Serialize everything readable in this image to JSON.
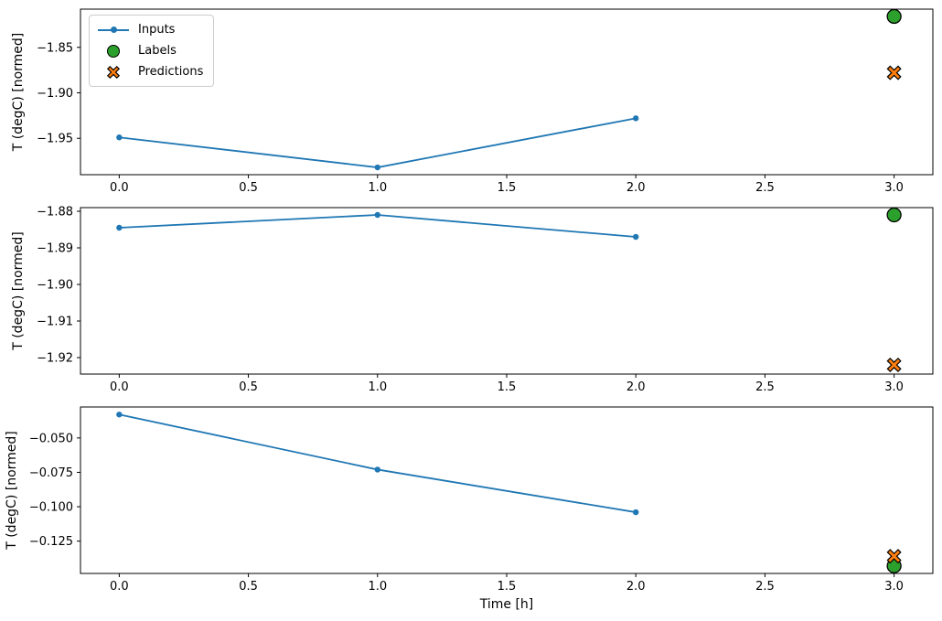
{
  "figure": {
    "background": "#ffffff",
    "legend": {
      "position": "upper-left-of-top-subplot",
      "items": [
        {
          "label": "Inputs",
          "marker": "line-with-dot",
          "color": "#1f77b4"
        },
        {
          "label": "Labels",
          "marker": "filled-circle",
          "color": "#2ca02c",
          "edge_color": "#000000"
        },
        {
          "label": "Predictions",
          "marker": "filled-x",
          "color": "#ff7f0e",
          "edge_color": "#000000"
        }
      ]
    }
  },
  "chart_data": [
    {
      "type": "line",
      "title": "",
      "xlabel": "",
      "ylabel": "T (degC) [normed]",
      "grid": false,
      "xlim": [
        -0.15,
        3.15
      ],
      "ylim": [
        -1.99,
        -1.808
      ],
      "xticks": [
        0.0,
        0.5,
        1.0,
        1.5,
        2.0,
        2.5,
        3.0
      ],
      "xtick_labels": [
        "0.0",
        "0.5",
        "1.0",
        "1.5",
        "2.0",
        "2.5",
        "3.0"
      ],
      "yticks": [
        -1.85,
        -1.9,
        -1.95
      ],
      "ytick_labels": [
        "−1.85",
        "−1.90",
        "−1.95"
      ],
      "legend_visible": true,
      "series": [
        {
          "name": "Inputs",
          "type": "line",
          "marker": "dot",
          "color": "#1f77b4",
          "x": [
            0,
            1,
            2
          ],
          "y": [
            -1.949,
            -1.982,
            -1.928
          ]
        },
        {
          "name": "Labels",
          "type": "scatter",
          "marker": "circle",
          "color": "#2ca02c",
          "edge_color": "#000000",
          "x": [
            3
          ],
          "y": [
            -1.816
          ]
        },
        {
          "name": "Predictions",
          "type": "scatter",
          "marker": "X",
          "color": "#ff7f0e",
          "edge_color": "#000000",
          "x": [
            3
          ],
          "y": [
            -1.878
          ]
        }
      ]
    },
    {
      "type": "line",
      "title": "",
      "xlabel": "",
      "ylabel": "T (degC) [normed]",
      "grid": false,
      "xlim": [
        -0.15,
        3.15
      ],
      "ylim": [
        -1.9245,
        -1.879
      ],
      "xticks": [
        0.0,
        0.5,
        1.0,
        1.5,
        2.0,
        2.5,
        3.0
      ],
      "xtick_labels": [
        "0.0",
        "0.5",
        "1.0",
        "1.5",
        "2.0",
        "2.5",
        "3.0"
      ],
      "yticks": [
        -1.88,
        -1.89,
        -1.9,
        -1.91,
        -1.92
      ],
      "ytick_labels": [
        "−1.88",
        "−1.89",
        "−1.90",
        "−1.91",
        "−1.92"
      ],
      "legend_visible": false,
      "series": [
        {
          "name": "Inputs",
          "type": "line",
          "marker": "dot",
          "color": "#1f77b4",
          "x": [
            0,
            1,
            2
          ],
          "y": [
            -1.8845,
            -1.881,
            -1.887
          ]
        },
        {
          "name": "Labels",
          "type": "scatter",
          "marker": "circle",
          "color": "#2ca02c",
          "edge_color": "#000000",
          "x": [
            3
          ],
          "y": [
            -1.881
          ]
        },
        {
          "name": "Predictions",
          "type": "scatter",
          "marker": "X",
          "color": "#ff7f0e",
          "edge_color": "#000000",
          "x": [
            3
          ],
          "y": [
            -1.922
          ]
        }
      ]
    },
    {
      "type": "line",
      "title": "",
      "xlabel": "Time [h]",
      "ylabel": "T (degC) [normed]",
      "grid": false,
      "xlim": [
        -0.15,
        3.15
      ],
      "ylim": [
        -0.1485,
        -0.0275
      ],
      "xticks": [
        0.0,
        0.5,
        1.0,
        1.5,
        2.0,
        2.5,
        3.0
      ],
      "xtick_labels": [
        "0.0",
        "0.5",
        "1.0",
        "1.5",
        "2.0",
        "2.5",
        "3.0"
      ],
      "yticks": [
        -0.05,
        -0.075,
        -0.1,
        -0.125
      ],
      "ytick_labels": [
        "−0.050",
        "−0.075",
        "−0.100",
        "−0.125"
      ],
      "legend_visible": false,
      "series": [
        {
          "name": "Inputs",
          "type": "line",
          "marker": "dot",
          "color": "#1f77b4",
          "x": [
            0,
            1,
            2
          ],
          "y": [
            -0.033,
            -0.073,
            -0.104
          ]
        },
        {
          "name": "Labels",
          "type": "scatter",
          "marker": "circle",
          "color": "#2ca02c",
          "edge_color": "#000000",
          "x": [
            3
          ],
          "y": [
            -0.143
          ]
        },
        {
          "name": "Predictions",
          "type": "scatter",
          "marker": "X",
          "color": "#ff7f0e",
          "edge_color": "#000000",
          "x": [
            3
          ],
          "y": [
            -0.136
          ]
        }
      ]
    }
  ]
}
